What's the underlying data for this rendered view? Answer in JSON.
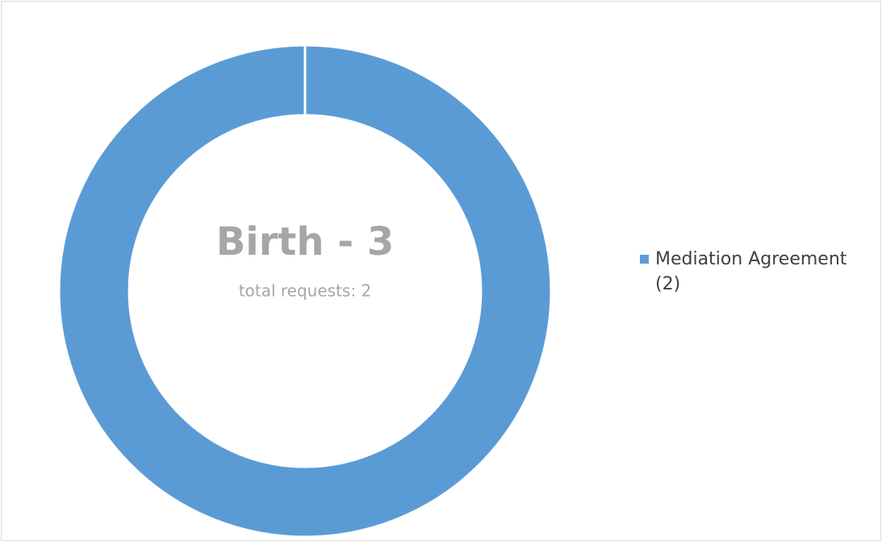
{
  "chart_data": {
    "type": "donut",
    "title": "Birth - 3",
    "subtitle": "total requests: 2",
    "categories": [
      "Mediation Agreement"
    ],
    "values": [
      2
    ],
    "value_labels": [
      "(2)"
    ],
    "colors": [
      "#5b9bd5"
    ],
    "legend": "right"
  }
}
